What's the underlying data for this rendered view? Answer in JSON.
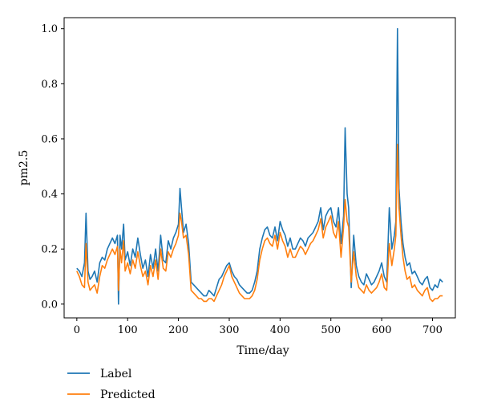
{
  "chart_data": {
    "type": "line",
    "xlabel": "Time/day",
    "ylabel": "pm2.5",
    "xlim": [
      -25,
      745
    ],
    "ylim": [
      -0.05,
      1.04
    ],
    "xticks": [
      0,
      100,
      200,
      300,
      400,
      500,
      600,
      700
    ],
    "yticks": [
      0.0,
      0.2,
      0.4,
      0.6,
      0.8,
      1.0
    ],
    "grid": false,
    "legend_position": "below-left",
    "series": [
      {
        "name": "Label",
        "color": "#1f77b4",
        "x": [
          0,
          5,
          10,
          15,
          18,
          22,
          26,
          30,
          35,
          40,
          45,
          50,
          55,
          60,
          65,
          70,
          75,
          80,
          82,
          85,
          88,
          92,
          95,
          100,
          105,
          110,
          115,
          120,
          125,
          130,
          135,
          140,
          145,
          150,
          155,
          160,
          165,
          170,
          175,
          180,
          185,
          190,
          195,
          200,
          203,
          206,
          210,
          215,
          220,
          225,
          230,
          235,
          240,
          245,
          250,
          255,
          260,
          265,
          270,
          275,
          280,
          285,
          290,
          295,
          300,
          305,
          310,
          315,
          320,
          325,
          330,
          335,
          340,
          345,
          350,
          355,
          360,
          365,
          370,
          375,
          380,
          385,
          390,
          395,
          400,
          405,
          410,
          415,
          420,
          425,
          430,
          435,
          440,
          445,
          450,
          455,
          460,
          465,
          470,
          475,
          480,
          485,
          490,
          495,
          500,
          505,
          510,
          515,
          520,
          525,
          528,
          532,
          535,
          540,
          545,
          550,
          555,
          560,
          565,
          570,
          575,
          580,
          585,
          590,
          595,
          600,
          605,
          610,
          615,
          620,
          625,
          628,
          631,
          634,
          638,
          642,
          646,
          650,
          655,
          660,
          665,
          670,
          675,
          680,
          685,
          690,
          695,
          700,
          705,
          710,
          715,
          720
        ],
        "values": [
          0.13,
          0.12,
          0.1,
          0.15,
          0.33,
          0.12,
          0.09,
          0.1,
          0.12,
          0.08,
          0.15,
          0.17,
          0.16,
          0.2,
          0.22,
          0.24,
          0.22,
          0.25,
          0.0,
          0.25,
          0.2,
          0.29,
          0.16,
          0.19,
          0.14,
          0.2,
          0.17,
          0.24,
          0.18,
          0.13,
          0.16,
          0.1,
          0.18,
          0.13,
          0.2,
          0.12,
          0.25,
          0.16,
          0.15,
          0.23,
          0.2,
          0.24,
          0.26,
          0.29,
          0.42,
          0.35,
          0.26,
          0.29,
          0.22,
          0.08,
          0.07,
          0.06,
          0.05,
          0.04,
          0.03,
          0.03,
          0.05,
          0.04,
          0.03,
          0.06,
          0.09,
          0.1,
          0.12,
          0.14,
          0.15,
          0.12,
          0.1,
          0.09,
          0.07,
          0.06,
          0.05,
          0.04,
          0.04,
          0.05,
          0.08,
          0.12,
          0.2,
          0.24,
          0.27,
          0.28,
          0.25,
          0.24,
          0.28,
          0.23,
          0.3,
          0.27,
          0.25,
          0.21,
          0.24,
          0.2,
          0.2,
          0.22,
          0.24,
          0.23,
          0.21,
          0.24,
          0.25,
          0.26,
          0.28,
          0.3,
          0.35,
          0.27,
          0.32,
          0.34,
          0.35,
          0.3,
          0.28,
          0.35,
          0.22,
          0.32,
          0.64,
          0.4,
          0.35,
          0.06,
          0.25,
          0.14,
          0.1,
          0.08,
          0.07,
          0.11,
          0.09,
          0.07,
          0.08,
          0.1,
          0.12,
          0.15,
          0.1,
          0.08,
          0.35,
          0.2,
          0.25,
          0.3,
          1.0,
          0.42,
          0.3,
          0.22,
          0.17,
          0.14,
          0.15,
          0.11,
          0.12,
          0.1,
          0.08,
          0.07,
          0.09,
          0.1,
          0.06,
          0.05,
          0.07,
          0.06,
          0.09,
          0.08
        ]
      },
      {
        "name": "Predicted",
        "color": "#ff7f0e",
        "x": [
          0,
          5,
          10,
          15,
          18,
          22,
          26,
          30,
          35,
          40,
          45,
          50,
          55,
          60,
          65,
          70,
          75,
          80,
          82,
          85,
          88,
          92,
          95,
          100,
          105,
          110,
          115,
          120,
          125,
          130,
          135,
          140,
          145,
          150,
          155,
          160,
          165,
          170,
          175,
          180,
          185,
          190,
          195,
          200,
          203,
          206,
          210,
          215,
          220,
          225,
          230,
          235,
          240,
          245,
          250,
          255,
          260,
          265,
          270,
          275,
          280,
          285,
          290,
          295,
          300,
          305,
          310,
          315,
          320,
          325,
          330,
          335,
          340,
          345,
          350,
          355,
          360,
          365,
          370,
          375,
          380,
          385,
          390,
          395,
          400,
          405,
          410,
          415,
          420,
          425,
          430,
          435,
          440,
          445,
          450,
          455,
          460,
          465,
          470,
          475,
          480,
          485,
          490,
          495,
          500,
          505,
          510,
          515,
          520,
          525,
          528,
          532,
          535,
          540,
          545,
          550,
          555,
          560,
          565,
          570,
          575,
          580,
          585,
          590,
          595,
          600,
          605,
          610,
          615,
          620,
          625,
          628,
          631,
          634,
          638,
          642,
          646,
          650,
          655,
          660,
          665,
          670,
          675,
          680,
          685,
          690,
          695,
          700,
          705,
          710,
          715,
          720
        ],
        "values": [
          0.12,
          0.1,
          0.07,
          0.06,
          0.22,
          0.08,
          0.05,
          0.06,
          0.07,
          0.04,
          0.1,
          0.14,
          0.13,
          0.16,
          0.18,
          0.2,
          0.18,
          0.21,
          0.05,
          0.2,
          0.15,
          0.23,
          0.12,
          0.15,
          0.11,
          0.16,
          0.13,
          0.19,
          0.14,
          0.1,
          0.12,
          0.07,
          0.14,
          0.1,
          0.16,
          0.09,
          0.2,
          0.13,
          0.12,
          0.19,
          0.17,
          0.2,
          0.22,
          0.25,
          0.33,
          0.3,
          0.24,
          0.25,
          0.18,
          0.05,
          0.04,
          0.03,
          0.02,
          0.02,
          0.01,
          0.01,
          0.02,
          0.02,
          0.01,
          0.03,
          0.05,
          0.07,
          0.1,
          0.12,
          0.14,
          0.1,
          0.08,
          0.06,
          0.04,
          0.03,
          0.02,
          0.02,
          0.02,
          0.03,
          0.05,
          0.09,
          0.16,
          0.2,
          0.23,
          0.24,
          0.22,
          0.21,
          0.25,
          0.2,
          0.26,
          0.23,
          0.21,
          0.17,
          0.2,
          0.17,
          0.17,
          0.19,
          0.21,
          0.2,
          0.18,
          0.2,
          0.22,
          0.23,
          0.25,
          0.27,
          0.31,
          0.24,
          0.28,
          0.3,
          0.32,
          0.26,
          0.24,
          0.3,
          0.17,
          0.28,
          0.38,
          0.3,
          0.28,
          0.08,
          0.19,
          0.1,
          0.06,
          0.05,
          0.04,
          0.07,
          0.05,
          0.04,
          0.05,
          0.06,
          0.08,
          0.11,
          0.06,
          0.05,
          0.22,
          0.14,
          0.2,
          0.25,
          0.58,
          0.35,
          0.25,
          0.17,
          0.12,
          0.09,
          0.1,
          0.06,
          0.07,
          0.05,
          0.04,
          0.03,
          0.05,
          0.06,
          0.02,
          0.01,
          0.02,
          0.02,
          0.03,
          0.03
        ]
      }
    ]
  }
}
